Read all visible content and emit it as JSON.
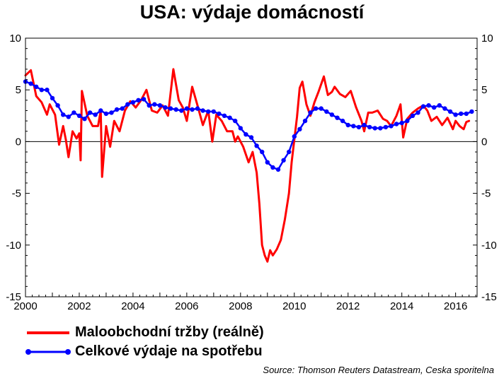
{
  "chart_data": {
    "type": "line",
    "title": "USA: výdaje domácností",
    "xlabel": "",
    "ylabel": "",
    "xlim": [
      2000,
      2016.8
    ],
    "ylim": [
      -15,
      10
    ],
    "x_ticks": [
      "2000",
      "2002",
      "2004",
      "2006",
      "2008",
      "2010",
      "2012",
      "2014",
      "2016"
    ],
    "y_ticks": [
      "-15",
      "-10",
      "-5",
      "0",
      "5",
      "10"
    ],
    "legend_position": "bottom",
    "source": "Source: Thomson Reuters Datastream, Ceska sporitelna",
    "series": [
      {
        "name": "Maloobchodní tržby (reálně)",
        "color": "#ff0000",
        "points": [
          [
            2000.0,
            6.4
          ],
          [
            2000.2,
            6.9
          ],
          [
            2000.4,
            4.4
          ],
          [
            2000.6,
            3.8
          ],
          [
            2000.8,
            2.6
          ],
          [
            2000.9,
            3.6
          ],
          [
            2001.1,
            2.6
          ],
          [
            2001.25,
            -0.3
          ],
          [
            2001.4,
            1.5
          ],
          [
            2001.5,
            0.2
          ],
          [
            2001.6,
            -1.5
          ],
          [
            2001.75,
            1.0
          ],
          [
            2001.9,
            0.3
          ],
          [
            2002.0,
            0.8
          ],
          [
            2002.05,
            -1.8
          ],
          [
            2002.1,
            4.9
          ],
          [
            2002.3,
            2.5
          ],
          [
            2002.5,
            1.5
          ],
          [
            2002.7,
            1.5
          ],
          [
            2002.8,
            3.0
          ],
          [
            2002.85,
            -3.4
          ],
          [
            2003.0,
            1.5
          ],
          [
            2003.15,
            -0.5
          ],
          [
            2003.3,
            2.0
          ],
          [
            2003.5,
            1.0
          ],
          [
            2003.7,
            3.0
          ],
          [
            2003.9,
            3.9
          ],
          [
            2004.1,
            3.3
          ],
          [
            2004.3,
            4.0
          ],
          [
            2004.5,
            5.0
          ],
          [
            2004.7,
            3.0
          ],
          [
            2004.9,
            2.8
          ],
          [
            2005.1,
            3.5
          ],
          [
            2005.3,
            2.5
          ],
          [
            2005.5,
            7.0
          ],
          [
            2005.7,
            4.0
          ],
          [
            2005.85,
            3.3
          ],
          [
            2006.0,
            2.0
          ],
          [
            2006.2,
            5.3
          ],
          [
            2006.4,
            3.5
          ],
          [
            2006.6,
            1.6
          ],
          [
            2006.8,
            3.0
          ],
          [
            2006.95,
            0.0
          ],
          [
            2007.1,
            2.6
          ],
          [
            2007.3,
            2.0
          ],
          [
            2007.5,
            1.0
          ],
          [
            2007.7,
            1.0
          ],
          [
            2007.8,
            0.0
          ],
          [
            2007.9,
            0.5
          ],
          [
            2008.1,
            -0.5
          ],
          [
            2008.3,
            -2.0
          ],
          [
            2008.45,
            -1.0
          ],
          [
            2008.6,
            -3.0
          ],
          [
            2008.7,
            -6.0
          ],
          [
            2008.8,
            -10.0
          ],
          [
            2008.9,
            -11.0
          ],
          [
            2009.0,
            -11.6
          ],
          [
            2009.1,
            -10.5
          ],
          [
            2009.2,
            -11.0
          ],
          [
            2009.35,
            -10.4
          ],
          [
            2009.5,
            -9.5
          ],
          [
            2009.65,
            -7.5
          ],
          [
            2009.8,
            -5.0
          ],
          [
            2009.9,
            -2.0
          ],
          [
            2010.0,
            0.2
          ],
          [
            2010.1,
            2.4
          ],
          [
            2010.2,
            5.2
          ],
          [
            2010.3,
            5.8
          ],
          [
            2010.45,
            3.6
          ],
          [
            2010.6,
            2.5
          ],
          [
            2010.75,
            3.8
          ],
          [
            2010.9,
            4.8
          ],
          [
            2011.1,
            6.3
          ],
          [
            2011.25,
            4.5
          ],
          [
            2011.4,
            4.8
          ],
          [
            2011.5,
            5.3
          ],
          [
            2011.7,
            4.6
          ],
          [
            2011.9,
            4.3
          ],
          [
            2012.1,
            4.9
          ],
          [
            2012.3,
            3.3
          ],
          [
            2012.5,
            2.0
          ],
          [
            2012.6,
            1.0
          ],
          [
            2012.75,
            2.8
          ],
          [
            2012.9,
            2.8
          ],
          [
            2013.1,
            3.0
          ],
          [
            2013.3,
            2.2
          ],
          [
            2013.45,
            2.0
          ],
          [
            2013.6,
            1.5
          ],
          [
            2013.8,
            2.5
          ],
          [
            2013.95,
            3.6
          ],
          [
            2014.05,
            0.4
          ],
          [
            2014.2,
            2.2
          ],
          [
            2014.4,
            2.8
          ],
          [
            2014.6,
            3.2
          ],
          [
            2014.8,
            3.5
          ],
          [
            2014.95,
            3.0
          ],
          [
            2015.1,
            2.0
          ],
          [
            2015.3,
            2.4
          ],
          [
            2015.5,
            1.6
          ],
          [
            2015.7,
            2.3
          ],
          [
            2015.9,
            1.2
          ],
          [
            2016.0,
            2.0
          ],
          [
            2016.15,
            1.5
          ],
          [
            2016.3,
            1.2
          ],
          [
            2016.4,
            1.9
          ],
          [
            2016.5,
            2.0
          ]
        ]
      },
      {
        "name": "Celkové výdaje na spotřebu",
        "color": "#0000ff",
        "points": [
          [
            2000.0,
            5.8
          ],
          [
            2000.2,
            5.6
          ],
          [
            2000.4,
            5.3
          ],
          [
            2000.6,
            5.0
          ],
          [
            2000.8,
            5.0
          ],
          [
            2001.0,
            4.2
          ],
          [
            2001.2,
            3.5
          ],
          [
            2001.4,
            2.6
          ],
          [
            2001.6,
            2.4
          ],
          [
            2001.8,
            2.8
          ],
          [
            2002.0,
            2.5
          ],
          [
            2002.2,
            2.2
          ],
          [
            2002.4,
            2.8
          ],
          [
            2002.6,
            2.6
          ],
          [
            2002.8,
            3.0
          ],
          [
            2003.0,
            2.7
          ],
          [
            2003.2,
            2.8
          ],
          [
            2003.4,
            3.1
          ],
          [
            2003.6,
            3.2
          ],
          [
            2003.8,
            3.6
          ],
          [
            2004.0,
            3.8
          ],
          [
            2004.2,
            4.0
          ],
          [
            2004.4,
            4.1
          ],
          [
            2004.6,
            3.5
          ],
          [
            2004.8,
            3.6
          ],
          [
            2005.0,
            3.5
          ],
          [
            2005.2,
            3.3
          ],
          [
            2005.4,
            3.2
          ],
          [
            2005.6,
            3.1
          ],
          [
            2005.8,
            3.0
          ],
          [
            2006.0,
            3.2
          ],
          [
            2006.2,
            3.1
          ],
          [
            2006.4,
            3.2
          ],
          [
            2006.6,
            3.0
          ],
          [
            2006.8,
            2.9
          ],
          [
            2007.0,
            2.9
          ],
          [
            2007.2,
            2.7
          ],
          [
            2007.4,
            2.5
          ],
          [
            2007.6,
            2.3
          ],
          [
            2007.8,
            2.0
          ],
          [
            2008.0,
            1.3
          ],
          [
            2008.2,
            0.7
          ],
          [
            2008.4,
            0.4
          ],
          [
            2008.6,
            -0.4
          ],
          [
            2008.8,
            -1.0
          ],
          [
            2009.0,
            -2.0
          ],
          [
            2009.2,
            -2.5
          ],
          [
            2009.4,
            -2.7
          ],
          [
            2009.6,
            -1.8
          ],
          [
            2009.8,
            -1.0
          ],
          [
            2010.0,
            0.5
          ],
          [
            2010.2,
            1.2
          ],
          [
            2010.4,
            2.0
          ],
          [
            2010.6,
            2.8
          ],
          [
            2010.8,
            3.2
          ],
          [
            2011.0,
            3.2
          ],
          [
            2011.2,
            2.9
          ],
          [
            2011.4,
            2.6
          ],
          [
            2011.6,
            2.3
          ],
          [
            2011.8,
            2.0
          ],
          [
            2012.0,
            1.6
          ],
          [
            2012.2,
            1.5
          ],
          [
            2012.4,
            1.4
          ],
          [
            2012.6,
            1.6
          ],
          [
            2012.8,
            1.4
          ],
          [
            2013.0,
            1.3
          ],
          [
            2013.2,
            1.3
          ],
          [
            2013.4,
            1.4
          ],
          [
            2013.6,
            1.5
          ],
          [
            2013.8,
            1.7
          ],
          [
            2014.0,
            1.8
          ],
          [
            2014.2,
            2.0
          ],
          [
            2014.4,
            2.5
          ],
          [
            2014.6,
            2.8
          ],
          [
            2014.8,
            3.4
          ],
          [
            2015.0,
            3.5
          ],
          [
            2015.2,
            3.3
          ],
          [
            2015.4,
            3.5
          ],
          [
            2015.6,
            3.2
          ],
          [
            2015.8,
            2.9
          ],
          [
            2016.0,
            2.6
          ],
          [
            2016.2,
            2.7
          ],
          [
            2016.4,
            2.7
          ],
          [
            2016.6,
            2.9
          ]
        ]
      }
    ]
  }
}
